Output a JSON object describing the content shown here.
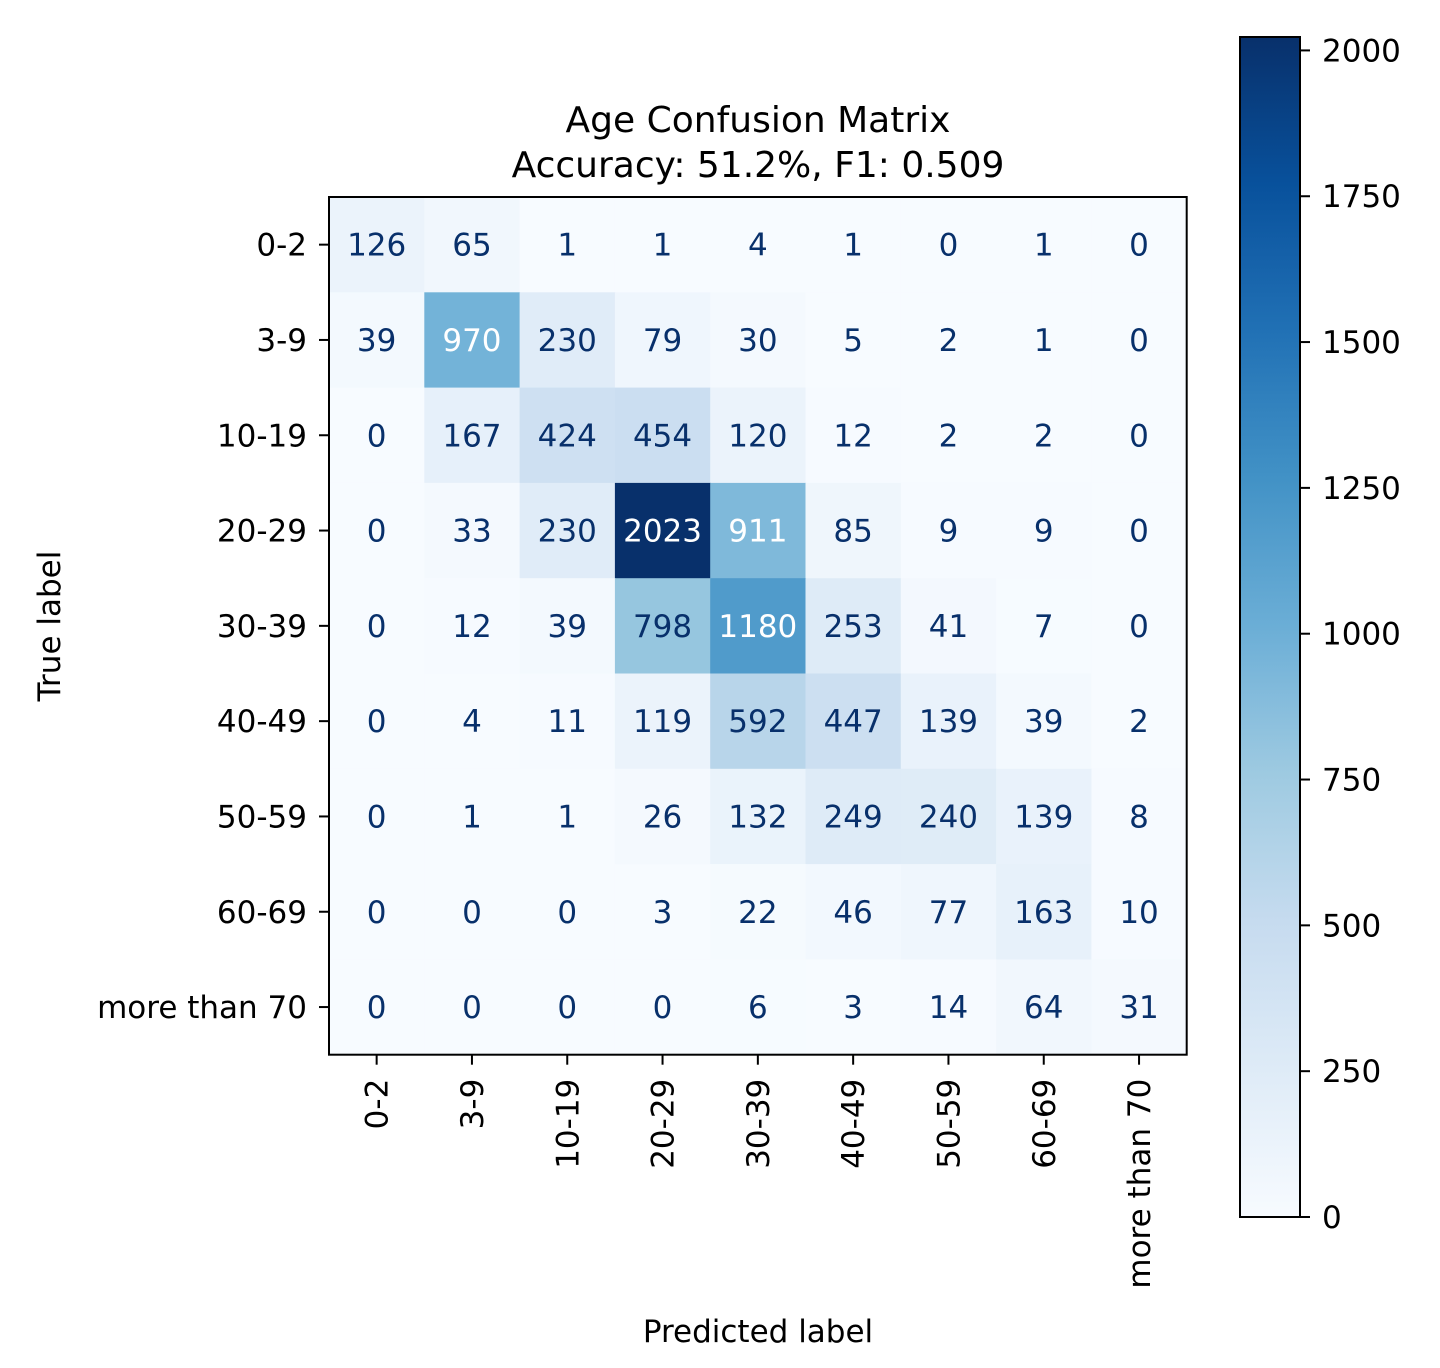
{
  "chart_data": {
    "type": "heatmap",
    "title": "Age Confusion Matrix",
    "subtitle": "Accuracy: 51.2%, F1: 0.509",
    "xlabel": "Predicted label",
    "ylabel": "True label",
    "labels": [
      "0-2",
      "3-9",
      "10-19",
      "20-29",
      "30-39",
      "40-49",
      "50-59",
      "60-69",
      "more than 70"
    ],
    "matrix": [
      [
        126,
        65,
        1,
        1,
        4,
        1,
        0,
        1,
        0
      ],
      [
        39,
        970,
        230,
        79,
        30,
        5,
        2,
        1,
        0
      ],
      [
        0,
        167,
        424,
        454,
        120,
        12,
        2,
        2,
        0
      ],
      [
        0,
        33,
        230,
        2023,
        911,
        85,
        9,
        9,
        0
      ],
      [
        0,
        12,
        39,
        798,
        1180,
        253,
        41,
        7,
        0
      ],
      [
        0,
        4,
        11,
        119,
        592,
        447,
        139,
        39,
        2
      ],
      [
        0,
        1,
        1,
        26,
        132,
        249,
        240,
        139,
        8
      ],
      [
        0,
        0,
        0,
        3,
        22,
        46,
        77,
        163,
        10
      ],
      [
        0,
        0,
        0,
        0,
        6,
        3,
        14,
        64,
        31
      ]
    ],
    "colormap": "Blues",
    "colorbar": {
      "range": [
        0,
        2023
      ],
      "ticks": [
        0,
        250,
        500,
        750,
        1000,
        1250,
        1500,
        1750,
        2000
      ]
    },
    "text_colors": {
      "dark": "#08306b",
      "light": "#ffffff"
    }
  }
}
